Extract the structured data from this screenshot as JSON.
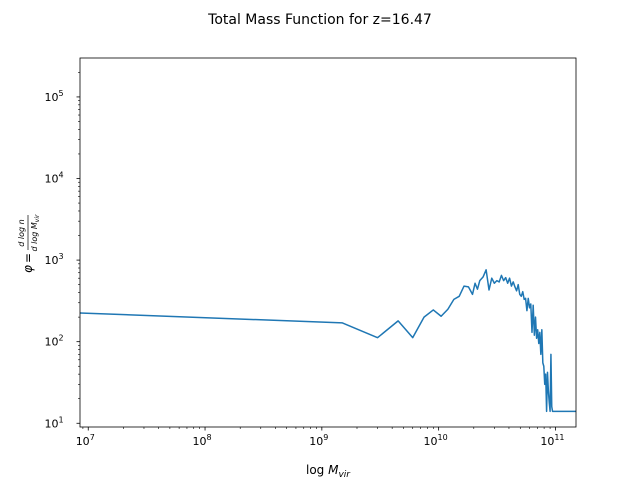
{
  "chart_data": {
    "type": "line",
    "title": "Total Mass Function for z=16.47",
    "xlabel": "log M_vir",
    "ylabel": "φ = dlog n / dlog M_vir",
    "xscale": "log",
    "yscale": "log",
    "xlim": [
      8500000.0,
      150000000000.0
    ],
    "ylim": [
      9.0,
      300000.0
    ],
    "x_ticks": [
      {
        "base": "10",
        "exp": "7",
        "value": 10000000.0
      },
      {
        "base": "10",
        "exp": "8",
        "value": 100000000.0
      },
      {
        "base": "10",
        "exp": "9",
        "value": 1000000000.0
      },
      {
        "base": "10",
        "exp": "10",
        "value": 10000000000.0
      },
      {
        "base": "10",
        "exp": "11",
        "value": 100000000000.0
      }
    ],
    "y_ticks": [
      {
        "base": "10",
        "exp": "1",
        "value": 10
      },
      {
        "base": "10",
        "exp": "2",
        "value": 100
      },
      {
        "base": "10",
        "exp": "3",
        "value": 1000
      },
      {
        "base": "10",
        "exp": "4",
        "value": 10000
      },
      {
        "base": "10",
        "exp": "5",
        "value": 100000
      }
    ],
    "grid": false,
    "series": [
      {
        "color": "#1f77b4",
        "x": [
          8500000.0,
          1500000000.0,
          3000000000.0,
          4500000000.0,
          6000000000.0,
          7500000000.0,
          9000000000.0,
          10500000000.0,
          12000000000.0,
          13500000000.0,
          15000000000.0,
          16500000000.0,
          18000000000.0,
          19500000000.0,
          20500000000.0,
          21500000000.0,
          22500000000.0,
          24000000000.0,
          25500000000.0,
          27000000000.0,
          28500000000.0,
          30000000000.0,
          31500000000.0,
          33000000000.0,
          34500000000.0,
          36000000000.0,
          37500000000.0,
          39000000000.0,
          40500000000.0,
          42000000000.0,
          43500000000.0,
          45000000000.0,
          46500000000.0,
          48000000000.0,
          49500000000.0,
          51000000000.0,
          52500000000.0,
          54000000000.0,
          55500000000.0,
          57000000000.0,
          58500000000.0,
          60000000000.0,
          61500000000.0,
          63000000000.0,
          64500000000.0,
          66000000000.0,
          67500000000.0,
          69000000000.0,
          70500000000.0,
          72000000000.0,
          73500000000.0,
          75000000000.0,
          76500000000.0,
          78000000000.0,
          79500000000.0,
          81000000000.0,
          82500000000.0,
          84000000000.0,
          85500000000.0,
          87000000000.0,
          88500000000.0,
          90000000000.0,
          91500000000.0,
          93000000000.0,
          94500000000.0,
          96000000000.0,
          97500000000.0,
          99000000000.0,
          150000000000.0
        ],
        "y": [
          225,
          170,
          112,
          180,
          112,
          200,
          245,
          205,
          250,
          330,
          360,
          480,
          470,
          380,
          520,
          440,
          560,
          620,
          760,
          430,
          600,
          520,
          560,
          540,
          650,
          560,
          610,
          520,
          600,
          480,
          540,
          470,
          420,
          500,
          380,
          360,
          410,
          330,
          340,
          240,
          340,
          260,
          290,
          130,
          280,
          120,
          200,
          110,
          140,
          95,
          130,
          70,
          140,
          55,
          50,
          30,
          40,
          14,
          42,
          25,
          18,
          14,
          70,
          16,
          14,
          14,
          14,
          14,
          14
        ]
      }
    ]
  }
}
